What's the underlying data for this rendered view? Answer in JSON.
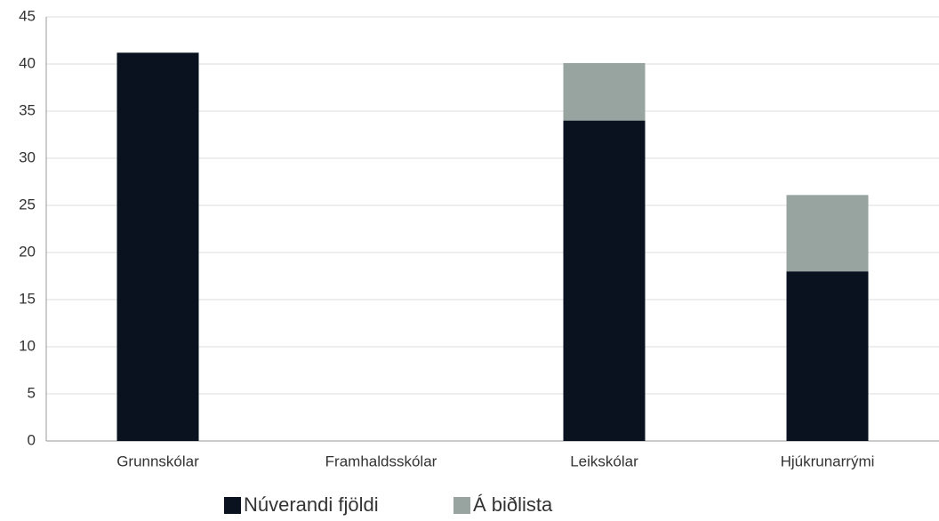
{
  "chart_data": {
    "type": "stacked_bar",
    "categories": [
      "Grunnskólar",
      "Framhaldsskólar",
      "Leikskólar",
      "Hjúkrunarrými"
    ],
    "series": [
      {
        "name": "Núverandi fjöldi",
        "color": "#0a1220",
        "values": [
          41.2,
          0,
          34,
          18
        ]
      },
      {
        "name": "Á biðlista",
        "color": "#97a49f",
        "values": [
          0,
          0,
          6.1,
          8.1
        ]
      }
    ],
    "ylim": [
      0,
      45
    ],
    "yticks": [
      0,
      5,
      10,
      15,
      20,
      25,
      30,
      35,
      40,
      45
    ],
    "grid": true,
    "legend": "bottom"
  }
}
